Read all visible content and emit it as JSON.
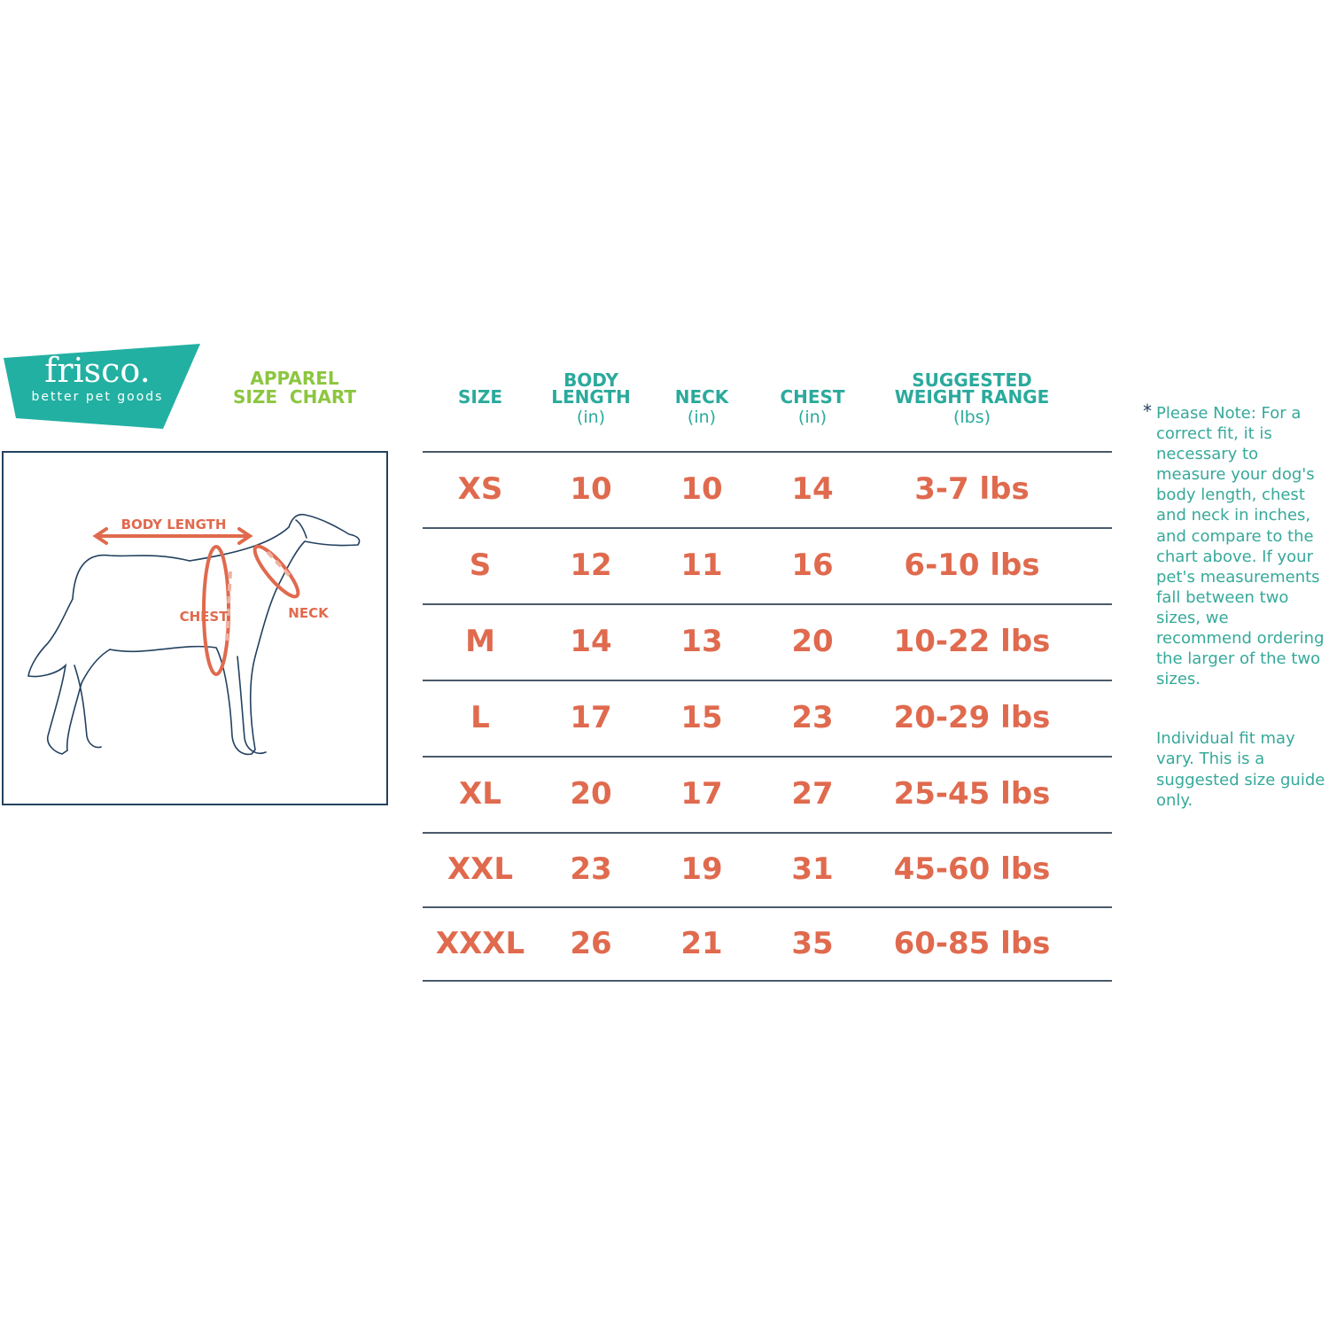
{
  "brand": {
    "name": "frisco.",
    "tagline": "better pet goods",
    "color": "#22b0a2"
  },
  "title": {
    "line1": "APPAREL",
    "line2": "SIZE  CHART"
  },
  "diagram": {
    "labels": {
      "body_length": "BODY LENGTH",
      "chest": "CHEST",
      "neck": "NECK"
    },
    "accent": "#e06a4e",
    "outline": "#23415f"
  },
  "table": {
    "headers": [
      {
        "label": "SIZE",
        "unit": ""
      },
      {
        "label": "BODY\nLENGTH",
        "unit": "(in)"
      },
      {
        "label": "NECK",
        "unit": "(in)"
      },
      {
        "label": "CHEST",
        "unit": "(in)"
      },
      {
        "label": "SUGGESTED\nWEIGHT RANGE",
        "unit": "(lbs)"
      }
    ],
    "rows": [
      [
        "XS",
        "10",
        "10",
        "14",
        "3-7 lbs"
      ],
      [
        "S",
        "12",
        "11",
        "16",
        "6-10 lbs"
      ],
      [
        "M",
        "14",
        "13",
        "20",
        "10-22 lbs"
      ],
      [
        "L",
        "17",
        "15",
        "23",
        "20-29 lbs"
      ],
      [
        "XL",
        "20",
        "17",
        "27",
        "25-45 lbs"
      ],
      [
        "XXL",
        "23",
        "19",
        "31",
        "45-60 lbs"
      ],
      [
        "XXXL",
        "26",
        "21",
        "35",
        "60-85 lbs"
      ]
    ]
  },
  "note": {
    "asterisk": "*",
    "paragraph1": "Please Note: For a correct fit, it is necessary to measure your dog's body length, chest and neck in inches, and compare to the chart above. If your pet's measurements fall between two sizes, we recommend ordering the larger of the two sizes.",
    "paragraph2": "Individual fit may vary. This is a suggested size guide only."
  }
}
